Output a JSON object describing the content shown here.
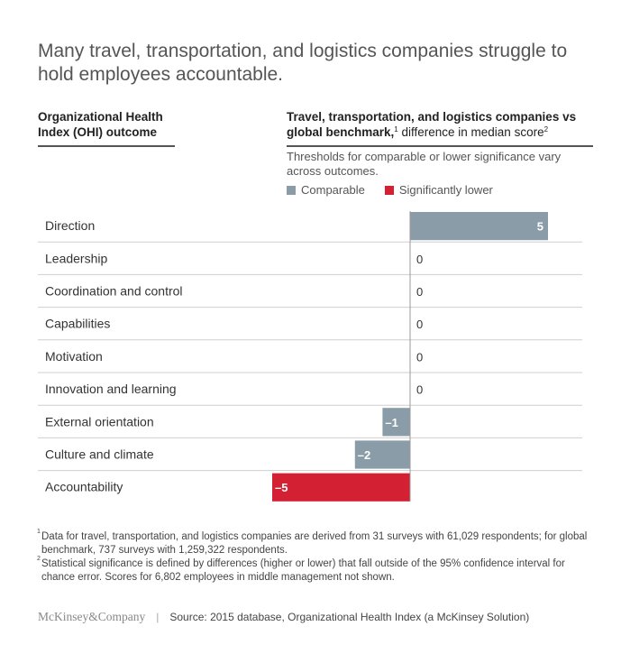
{
  "title": "Many travel, transportation, and logistics companies struggle to hold employees accountable.",
  "header_left": "Organizational Health Index (OHI) outcome",
  "header_right": {
    "bold": "Travel, transportation, and logistics companies vs global benchmark,",
    "sup1": "1",
    "normal": " difference in median score",
    "sup2": "2"
  },
  "thresholds_note": "Thresholds for comparable or lower significance vary across outcomes.",
  "legend": [
    {
      "label": "Comparable",
      "color": "#8a9ca8"
    },
    {
      "label": "Significantly lower",
      "color": "#d42033"
    }
  ],
  "chart_data": {
    "type": "bar",
    "orientation": "horizontal",
    "categories": [
      "Direction",
      "Leadership",
      "Coordination and control",
      "Capabilities",
      "Motivation",
      "Innovation and learning",
      "External orientation",
      "Culture and climate",
      "Accountability"
    ],
    "values": [
      5,
      0,
      0,
      0,
      0,
      0,
      -1,
      -2,
      -5
    ],
    "value_labels": [
      "5",
      "0",
      "0",
      "0",
      "0",
      "0",
      "–1",
      "–2",
      "–5"
    ],
    "significance": [
      "Comparable",
      "Comparable",
      "Comparable",
      "Comparable",
      "Comparable",
      "Comparable",
      "Comparable",
      "Comparable",
      "Significantly lower"
    ],
    "xlim": [
      -5,
      5
    ]
  },
  "footnotes": [
    {
      "mark": "1",
      "text": "Data for travel, transportation, and logistics companies are derived from 31 surveys with 61,029 respondents; for global benchmark, 737 surveys with 1,259,322 respondents."
    },
    {
      "mark": "2",
      "text": "Statistical significance is defined by differences (higher or lower) that fall outside of the 95% confidence interval for chance error. Scores for 6,802 employees in middle management not shown."
    }
  ],
  "footer": {
    "brand": "McKinsey&Company",
    "separator": "|",
    "source": "Source: 2015 database, Organizational Health Index (a McKinsey Solution)"
  }
}
